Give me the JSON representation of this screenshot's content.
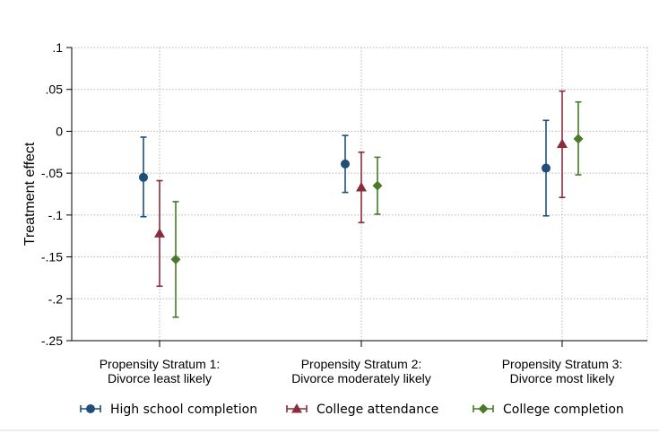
{
  "chart_data": {
    "type": "scatter",
    "subtype": "point-range with error bars",
    "ylabel": "Treatment effect",
    "xlabel": "",
    "ylim": [
      -0.25,
      0.1
    ],
    "yticks": [
      0.1,
      0.05,
      0,
      -0.05,
      -0.1,
      -0.15,
      -0.2,
      -0.25
    ],
    "ytick_labels": [
      ".1",
      ".05",
      "0",
      "-.05",
      "-.1",
      "-.15",
      "-.2",
      "-.25"
    ],
    "categories": [
      [
        "Propensity Stratum 1:",
        "Divorce least likely"
      ],
      [
        "Propensity Stratum 2:",
        "Divorce moderately likely"
      ],
      [
        "Propensity Stratum 3:",
        "Divorce most likely"
      ]
    ],
    "series": [
      {
        "name": "High school completion",
        "color": "#1f4e79",
        "marker": "circle",
        "points": [
          {
            "estimate": -0.055,
            "lower": -0.102,
            "upper": -0.007
          },
          {
            "estimate": -0.039,
            "lower": -0.073,
            "upper": -0.005
          },
          {
            "estimate": -0.044,
            "lower": -0.101,
            "upper": 0.013
          }
        ]
      },
      {
        "name": "College attendance",
        "color": "#8b2c3a",
        "marker": "triangle",
        "points": [
          {
            "estimate": -0.122,
            "lower": -0.185,
            "upper": -0.059
          },
          {
            "estimate": -0.067,
            "lower": -0.109,
            "upper": -0.025
          },
          {
            "estimate": -0.015,
            "lower": -0.079,
            "upper": 0.048
          }
        ]
      },
      {
        "name": "College completion",
        "color": "#4a7a2a",
        "marker": "diamond",
        "points": [
          {
            "estimate": -0.153,
            "lower": -0.222,
            "upper": -0.084
          },
          {
            "estimate": -0.065,
            "lower": -0.099,
            "upper": -0.031
          },
          {
            "estimate": -0.009,
            "lower": -0.052,
            "upper": 0.035
          }
        ]
      }
    ],
    "grid": true,
    "legend_position": "bottom"
  }
}
